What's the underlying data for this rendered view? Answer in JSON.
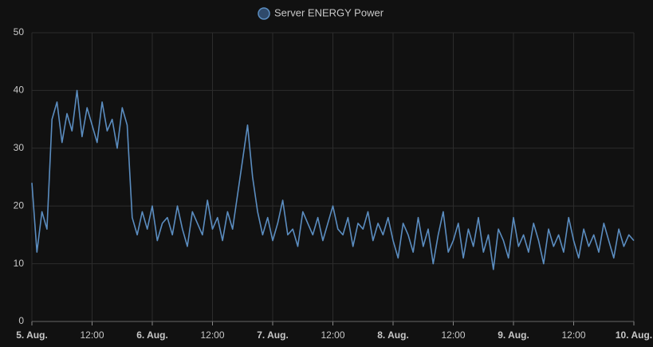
{
  "chart_data": {
    "type": "line",
    "series": [
      {
        "name": "Server ENERGY Power",
        "color": "#5b8dc0",
        "x": [
          0,
          1,
          2,
          3,
          4,
          5,
          6,
          7,
          8,
          9,
          10,
          11,
          12,
          13,
          14,
          15,
          16,
          17,
          18,
          19,
          20,
          21,
          22,
          23,
          24,
          25,
          26,
          27,
          28,
          29,
          30,
          31,
          32,
          33,
          34,
          35,
          36,
          37,
          38,
          39,
          40,
          41,
          42,
          43,
          44,
          45,
          46,
          47,
          48,
          49,
          50,
          51,
          52,
          53,
          54,
          55,
          56,
          57,
          58,
          59,
          60,
          61,
          62,
          63,
          64,
          65,
          66,
          67,
          68,
          69,
          70,
          71,
          72,
          73,
          74,
          75,
          76,
          77,
          78,
          79,
          80,
          81,
          82,
          83,
          84,
          85,
          86,
          87,
          88,
          89,
          90,
          91,
          92,
          93,
          94,
          95,
          96,
          97,
          98,
          99,
          100,
          101,
          102,
          103,
          104,
          105,
          106,
          107,
          108,
          109,
          110,
          111,
          112,
          113,
          114,
          115,
          116,
          117,
          118,
          119,
          120
        ],
        "values": [
          24,
          12,
          19,
          16,
          35,
          38,
          31,
          36,
          33,
          40,
          32,
          37,
          34,
          31,
          38,
          33,
          35,
          30,
          37,
          34,
          18,
          15,
          19,
          16,
          20,
          14,
          17,
          18,
          15,
          20,
          16,
          13,
          19,
          17,
          15,
          21,
          16,
          18,
          14,
          19,
          16,
          22,
          28,
          34,
          25,
          19,
          15,
          18,
          14,
          17,
          21,
          15,
          16,
          13,
          19,
          17,
          15,
          18,
          14,
          17,
          20,
          16,
          15,
          18,
          13,
          17,
          16,
          19,
          14,
          17,
          15,
          18,
          14,
          11,
          17,
          15,
          12,
          18,
          13,
          16,
          10,
          15,
          19,
          12,
          14,
          17,
          11,
          16,
          13,
          18,
          12,
          15,
          9,
          16,
          14,
          11,
          18,
          13,
          15,
          12,
          17,
          14,
          10,
          16,
          13,
          15,
          12,
          18,
          14,
          11,
          16,
          13,
          15,
          12,
          17,
          14,
          11,
          16,
          13,
          15,
          14
        ]
      }
    ],
    "xlim": [
      0,
      120
    ],
    "xticks": [
      {
        "value": 0,
        "label": "5. Aug."
      },
      {
        "value": 12,
        "label": "12:00"
      },
      {
        "value": 24,
        "label": "6. Aug."
      },
      {
        "value": 36,
        "label": "12:00"
      },
      {
        "value": 48,
        "label": "7. Aug."
      },
      {
        "value": 60,
        "label": "12:00"
      },
      {
        "value": 72,
        "label": "8. Aug."
      },
      {
        "value": 84,
        "label": "12:00"
      },
      {
        "value": 96,
        "label": "9. Aug."
      },
      {
        "value": 108,
        "label": "12:00"
      },
      {
        "value": 120,
        "label": "10. Aug."
      }
    ],
    "ylim": [
      0,
      50
    ],
    "yticks": [
      0,
      10,
      20,
      30,
      40,
      50
    ],
    "grid": true
  }
}
